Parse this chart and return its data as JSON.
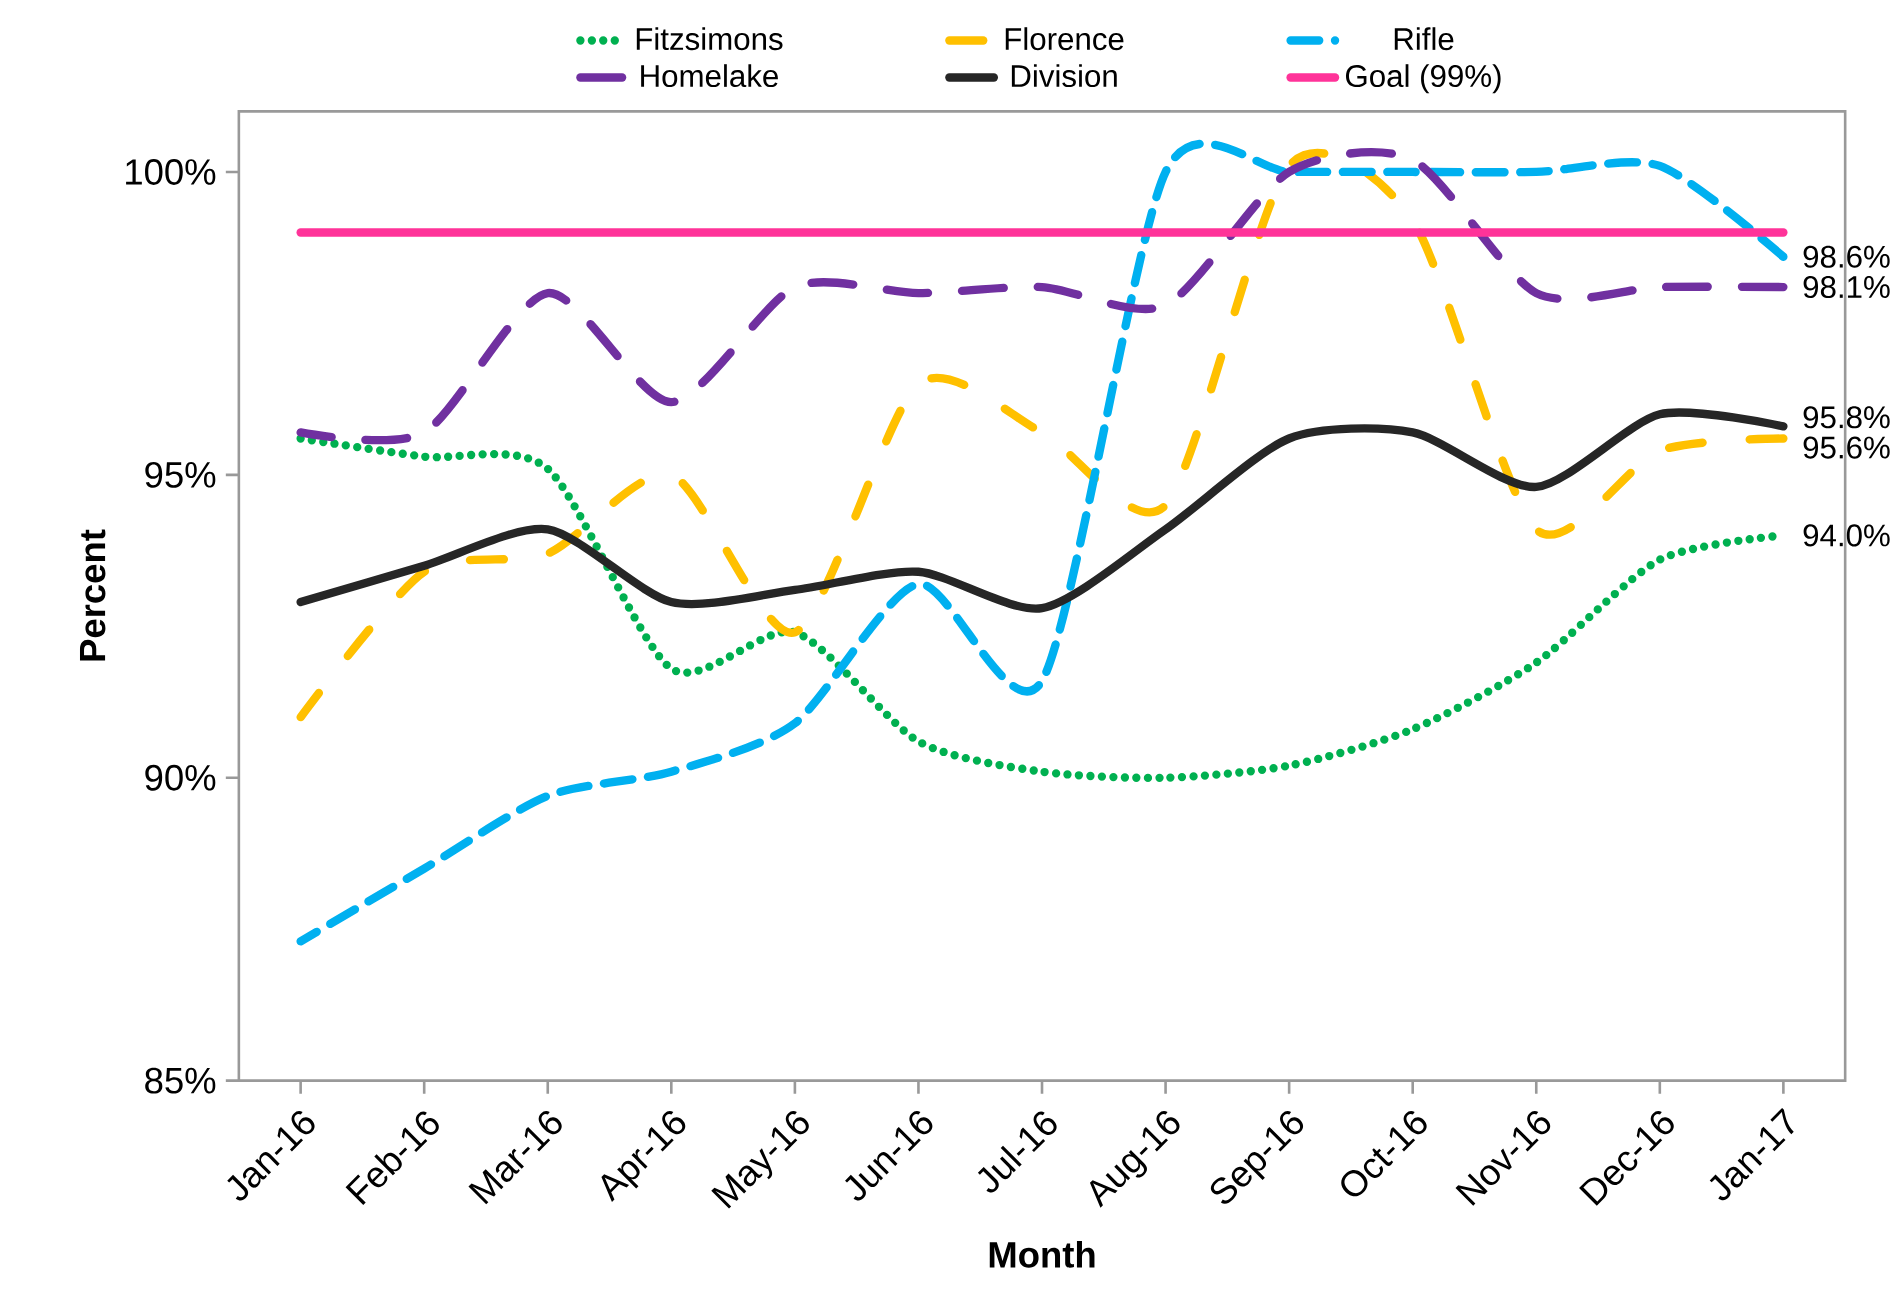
{
  "chart_data": {
    "type": "line",
    "categories": [
      "Jan-16",
      "Feb-16",
      "Mar-16",
      "Apr-16",
      "May-16",
      "Jun-16",
      "Jul-16",
      "Aug-16",
      "Sep-16",
      "Oct-16",
      "Nov-16",
      "Dec-16",
      "Jan-17"
    ],
    "series": [
      {
        "name": "Fitzsimons",
        "color": "#00b050",
        "line_style": "dotted",
        "values": [
          95.6,
          95.3,
          95.1,
          91.8,
          92.4,
          90.6,
          90.1,
          90.0,
          90.2,
          90.8,
          91.9,
          93.6,
          94.0
        ],
        "value_labels": [
          null,
          null,
          null,
          null,
          null,
          null,
          null,
          null,
          null,
          null,
          null,
          null,
          "94.0%"
        ]
      },
      {
        "name": "Florence",
        "color": "#ffc000",
        "line_style": "dashdot",
        "values": [
          91.0,
          93.4,
          93.7,
          95.0,
          92.4,
          96.5,
          95.7,
          94.5,
          100.1,
          99.2,
          94.1,
          95.4,
          95.6
        ],
        "value_labels": [
          null,
          null,
          null,
          null,
          null,
          null,
          null,
          null,
          null,
          null,
          null,
          null,
          "95.6%"
        ]
      },
      {
        "name": "Rifle",
        "color": "#00b0f0",
        "line_style": "dashed",
        "values": [
          87.3,
          88.5,
          89.7,
          90.1,
          90.9,
          93.2,
          91.6,
          100.0,
          100.0,
          100.0,
          100.0,
          100.1,
          98.6
        ],
        "value_labels": [
          null,
          null,
          null,
          null,
          null,
          null,
          null,
          null,
          null,
          null,
          null,
          null,
          "98.6%"
        ]
      },
      {
        "name": "Homelake",
        "color": "#7030a0",
        "line_style": "longdashed",
        "values": [
          95.7,
          95.7,
          98.0,
          96.2,
          98.1,
          98.0,
          98.1,
          97.8,
          100.0,
          100.2,
          98.0,
          98.1,
          98.1
        ],
        "value_labels": [
          null,
          null,
          null,
          null,
          null,
          null,
          null,
          null,
          null,
          null,
          null,
          null,
          "98.1%"
        ]
      },
      {
        "name": "Division",
        "color": "#262626",
        "line_style": "solid",
        "values": [
          92.9,
          93.5,
          94.1,
          92.9,
          93.1,
          93.4,
          92.8,
          94.1,
          95.6,
          95.7,
          94.8,
          96.0,
          95.8
        ],
        "value_labels": [
          null,
          null,
          null,
          null,
          null,
          null,
          null,
          null,
          null,
          null,
          null,
          null,
          "95.8%"
        ]
      },
      {
        "name": "Goal (99%)",
        "color": "#ff3399",
        "line_style": "solid",
        "values": [
          99,
          99,
          99,
          99,
          99,
          99,
          99,
          99,
          99,
          99,
          99,
          99,
          99
        ]
      }
    ],
    "xlabel": "Month",
    "ylabel": "Percent",
    "ylim": [
      85,
      101
    ],
    "yticks": [
      {
        "value": 85,
        "label": "85%"
      },
      {
        "value": 90,
        "label": "90%"
      },
      {
        "value": 95,
        "label": "95%"
      },
      {
        "value": 100,
        "label": "100%"
      }
    ],
    "legend": "top",
    "grid": false,
    "marker": "none"
  }
}
